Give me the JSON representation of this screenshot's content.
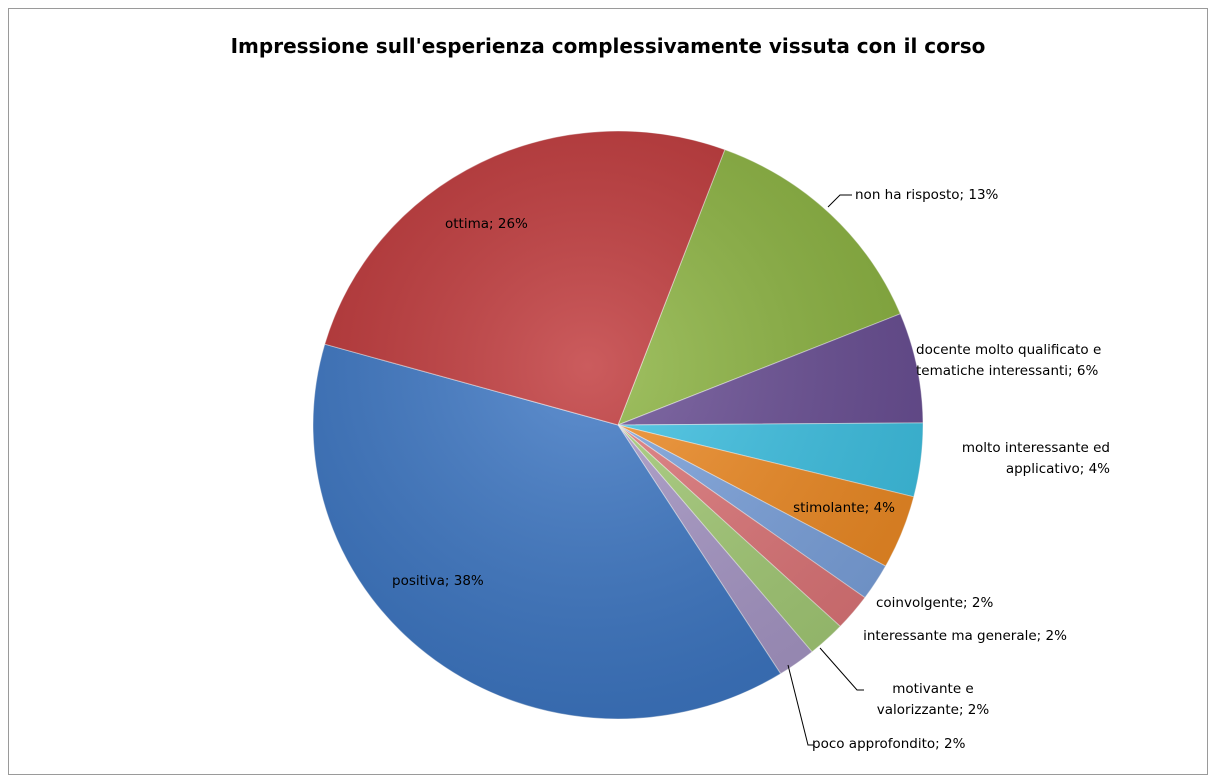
{
  "chart_data": {
    "type": "pie",
    "title": "Impressione sull'esperienza complessivamente vissuta con il corso",
    "values": [
      13,
      6,
      4,
      4,
      2,
      2,
      2,
      2,
      38,
      26
    ],
    "value_labels": [
      "non ha risposto; 13%",
      "docente molto qualificato e tematiche interessanti; 6%",
      "molto interessante ed applicativo; 4%",
      "stimolante; 4%",
      "coinvolgente; 2%",
      "interessante ma generale; 2%",
      "motivante e valorizzante; 2%",
      "poco approfondito; 2%",
      "positiva; 38%",
      "ottima; 26%"
    ],
    "colors": [
      "#8db542",
      "#6a4f95",
      "#3fc3e5",
      "#f08c25",
      "#7da4df",
      "#e0777a",
      "#a6cd78",
      "#a999c8",
      "#3e78c5",
      "#c0383a"
    ]
  }
}
